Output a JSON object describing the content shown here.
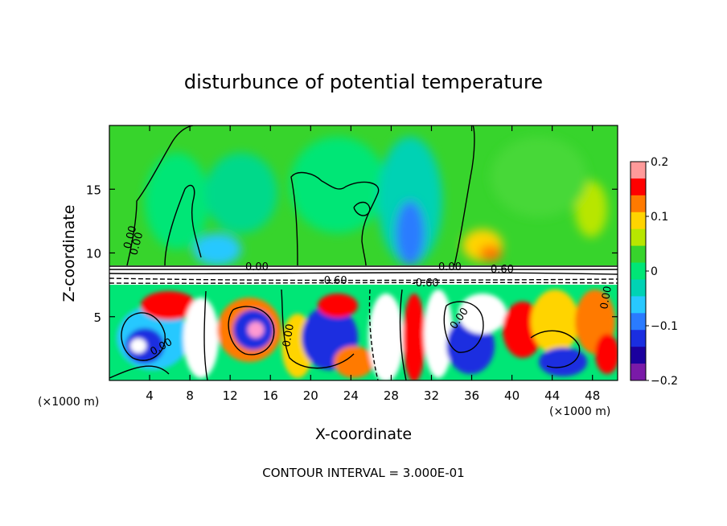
{
  "chart_data": {
    "type": "heatmap",
    "title": "disturbunce of potential temperature",
    "xlabel": "X-coordinate",
    "ylabel": "Z-coordinate",
    "x_unit_left": "(×1000 m)",
    "x_unit_right": "(×1000 m)",
    "xlim": [
      0,
      50.5
    ],
    "ylim": [
      0,
      20
    ],
    "x_ticks": [
      4,
      8,
      12,
      16,
      20,
      24,
      28,
      32,
      36,
      40,
      44,
      48
    ],
    "y_ticks": [
      5,
      10,
      15
    ],
    "colorbar": {
      "range": [
        -0.2,
        0.2
      ],
      "tick_values": [
        0.2,
        0.1,
        0,
        -0.1,
        -0.2
      ],
      "tick_labels": [
        "0.2",
        "0.1",
        "0",
        "−0.1",
        "−0.2"
      ],
      "colors": [
        "#ff9a9a",
        "#ff0000",
        "#ff7a00",
        "#ffd400",
        "#b8e600",
        "#37d42c",
        "#00e676",
        "#00d2b4",
        "#28c8ff",
        "#2a7bff",
        "#1a2ee0",
        "#1b009e",
        "#7a1aa8"
      ]
    },
    "contour_labels": [
      "0.00",
      "0.00",
      "0.00",
      "0.00",
      "0.00",
      "-0.60",
      "-0.60",
      "0.60",
      "0.00",
      "0.00",
      "0.00"
    ],
    "footer": "CONTOUR INTERVAL = 3.000E-01"
  }
}
